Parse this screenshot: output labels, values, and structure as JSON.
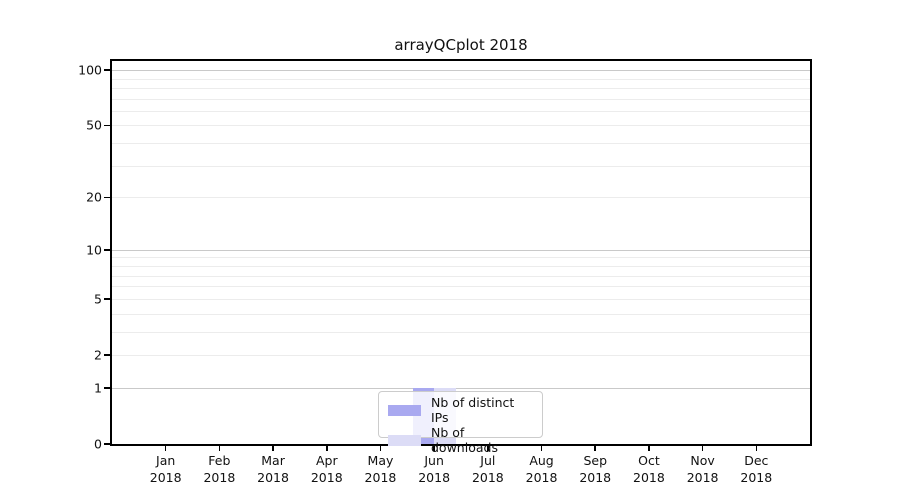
{
  "title": "arrayQCplot 2018",
  "colors": {
    "series_distinct_ips": "#a9a9f0",
    "series_downloads": "#dcdcf6",
    "grid_major": "#c9c9c9",
    "grid_minor": "#ececec",
    "axis": "#000000"
  },
  "legend": {
    "items": [
      {
        "label": "Nb of distinct IPs",
        "color": "#a9a9f0"
      },
      {
        "label": "Nb of downloads",
        "color": "#dcdcf6"
      }
    ]
  },
  "chart_data": {
    "type": "bar",
    "title": "arrayQCplot 2018",
    "categories": [
      "Jan 2018",
      "Feb 2018",
      "Mar 2018",
      "Apr 2018",
      "May 2018",
      "Jun 2018",
      "Jul 2018",
      "Aug 2018",
      "Sep 2018",
      "Oct 2018",
      "Nov 2018",
      "Dec 2018"
    ],
    "series": [
      {
        "name": "Nb of distinct IPs",
        "color": "#a9a9f0",
        "values": [
          0,
          0,
          0,
          0,
          0,
          1,
          0,
          0,
          0,
          0,
          0,
          0
        ]
      },
      {
        "name": "Nb of downloads",
        "color": "#dcdcf6",
        "values": [
          0,
          0,
          0,
          0,
          0,
          1,
          0,
          0,
          0,
          0,
          0,
          0
        ]
      }
    ],
    "xlabel": "",
    "ylabel": "",
    "yscale": "log1p",
    "ylim": [
      0,
      112
    ],
    "yticks_labeled": [
      0,
      1,
      2,
      5,
      10,
      20,
      50,
      100
    ],
    "gridlines_major": [
      1,
      10,
      100
    ],
    "gridlines_minor": [
      2,
      3,
      4,
      5,
      6,
      7,
      8,
      9,
      20,
      30,
      40,
      50,
      60,
      70,
      80,
      90
    ],
    "grid": true,
    "legend_position": "lower center"
  }
}
